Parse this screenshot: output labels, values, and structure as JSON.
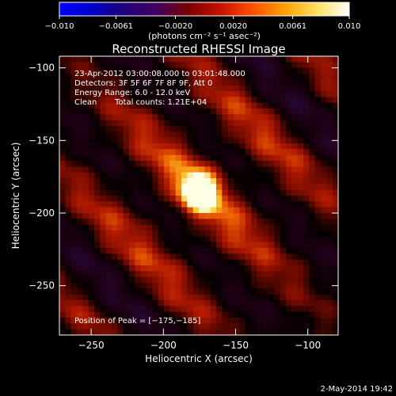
{
  "colorbar": {
    "ticks": [
      "-0.010",
      "-0.0061",
      "-0.0020",
      "0.0020",
      "0.0061",
      "0.010"
    ],
    "tick_values": [
      -0.01,
      -0.0061,
      -0.002,
      0.002,
      0.0061,
      0.01
    ],
    "range": [
      -0.01,
      0.01
    ],
    "units": "(photons cm⁻² s⁻¹ asec⁻²)",
    "colors": [
      "#0000ff",
      "#0000c8",
      "#20007a",
      "#400060",
      "#7a0000",
      "#c81000",
      "#ff5000",
      "#ffa000",
      "#ffe060",
      "#ffffff"
    ]
  },
  "chart_data": {
    "type": "heatmap",
    "title": "Reconstructed RHESSI Image",
    "xlabel": "Heliocentric X (arcsec)",
    "ylabel": "Heliocentric Y (arcsec)",
    "xlim": [
      -272,
      -79
    ],
    "ylim": [
      -284,
      -92
    ],
    "xticks": [
      -250,
      -200,
      -150,
      -100
    ],
    "yticks": [
      -100,
      -150,
      -200,
      -250
    ],
    "xtick_labels": [
      "−250",
      "−200",
      "−150",
      "−100"
    ],
    "ytick_labels": [
      "−100",
      "−150",
      "−200",
      "−250"
    ],
    "peak": {
      "x": -175,
      "y": -185
    },
    "annotations": {
      "time": "23-Apr-2012 03:00:08.000 to 03:01:48.000",
      "detectors": "Detectors: 3F 5F 6F 7F 8F 9F, Att 0",
      "energy": "Energy Range: 6.0 - 12.0 keV",
      "clean": "Clean",
      "counts": "Total counts: 1.21E+04",
      "peak_label": "Position of Peak = [−175,−185]"
    }
  },
  "footer_date": "2-May-2014 19:42"
}
